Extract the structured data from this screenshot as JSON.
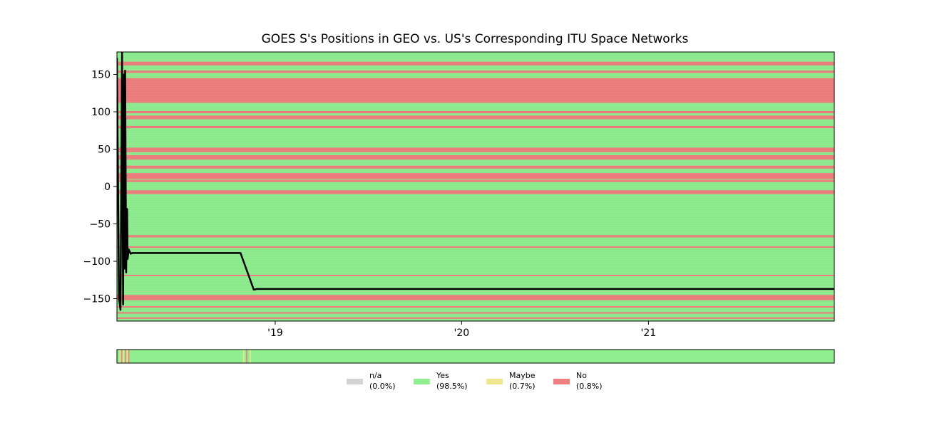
{
  "chart_data": {
    "type": "area",
    "title": "GOES S's Positions in GEO vs. US's Corresponding ITU Space Networks",
    "xlabel": "",
    "ylabel": "",
    "x_tick_labels": [
      "'19",
      "'20",
      "'21"
    ],
    "x_tick_dates": [
      "2019-01-01",
      "2020-01-01",
      "2021-01-01"
    ],
    "xlim": [
      "2018-02-25",
      "2021-12-31"
    ],
    "ylim": [
      -180,
      180
    ],
    "y_ticks": [
      150,
      100,
      50,
      0,
      -50,
      -100,
      -150
    ],
    "y_tick_labels": [
      "150",
      "100",
      "50",
      "0",
      "−50",
      "−100",
      "−150"
    ],
    "grid": false,
    "status_colors": {
      "na": "#d3d3d3",
      "yes": "#90ee90",
      "maybe": "#f0e68c",
      "no": "#f08080"
    },
    "background_status": "yes",
    "no_bands": [
      [
        -10,
        -5
      ],
      [
        6,
        9
      ],
      [
        10,
        18
      ],
      [
        24,
        28
      ],
      [
        36,
        42
      ],
      [
        46,
        52
      ],
      [
        78,
        81
      ],
      [
        90,
        95
      ],
      [
        98,
        101
      ],
      [
        112,
        145
      ],
      [
        152,
        155
      ],
      [
        162,
        167
      ],
      [
        -68,
        -65
      ],
      [
        -82,
        -80
      ],
      [
        -120,
        -118
      ],
      [
        -152,
        -145
      ],
      [
        -162,
        -160
      ],
      [
        -170,
        -168
      ],
      [
        -177,
        -175
      ]
    ],
    "position_series": {
      "name": "",
      "color": "#000000",
      "x": [
        "2018-02-25",
        "2018-03-01",
        "2018-03-04",
        "2018-03-07",
        "2018-03-09",
        "2018-03-11",
        "2018-03-12",
        "2018-03-13",
        "2018-03-15",
        "2018-03-17",
        "2018-03-18",
        "2018-03-20",
        "2018-03-24",
        "2018-03-27",
        "2018-04-01",
        "2018-06-01",
        "2018-09-01",
        "2018-10-25",
        "2018-11-20",
        "2018-11-26",
        "2019-06-01",
        "2020-06-01",
        "2021-06-01",
        "2021-12-31"
      ],
      "y": [
        172,
        -150,
        -165,
        180,
        -158,
        150,
        -110,
        155,
        -115,
        -30,
        -97,
        -84,
        -90,
        -89,
        -89,
        -89,
        -89,
        -89,
        -138,
        -137,
        -137,
        -137,
        -137,
        -137
      ]
    },
    "status_strip": {
      "background": "yes",
      "marks": [
        {
          "date": "2018-03-02",
          "status": "maybe"
        },
        {
          "date": "2018-03-05",
          "status": "no"
        },
        {
          "date": "2018-03-09",
          "status": "maybe"
        },
        {
          "date": "2018-03-13",
          "status": "no"
        },
        {
          "date": "2018-03-16",
          "status": "maybe"
        },
        {
          "date": "2018-03-19",
          "status": "no"
        },
        {
          "date": "2018-10-30",
          "status": "maybe"
        },
        {
          "date": "2018-11-05",
          "status": "no"
        },
        {
          "date": "2018-11-12",
          "status": "maybe"
        }
      ]
    },
    "legend": {
      "placement": "bottom-center",
      "entries": [
        {
          "key": "na",
          "name": "n/a",
          "pct": "(0.0%)"
        },
        {
          "key": "yes",
          "name": "Yes",
          "pct": "(98.5%)"
        },
        {
          "key": "maybe",
          "name": "Maybe",
          "pct": "(0.7%)"
        },
        {
          "key": "no",
          "name": "No",
          "pct": "(0.8%)"
        }
      ]
    }
  }
}
